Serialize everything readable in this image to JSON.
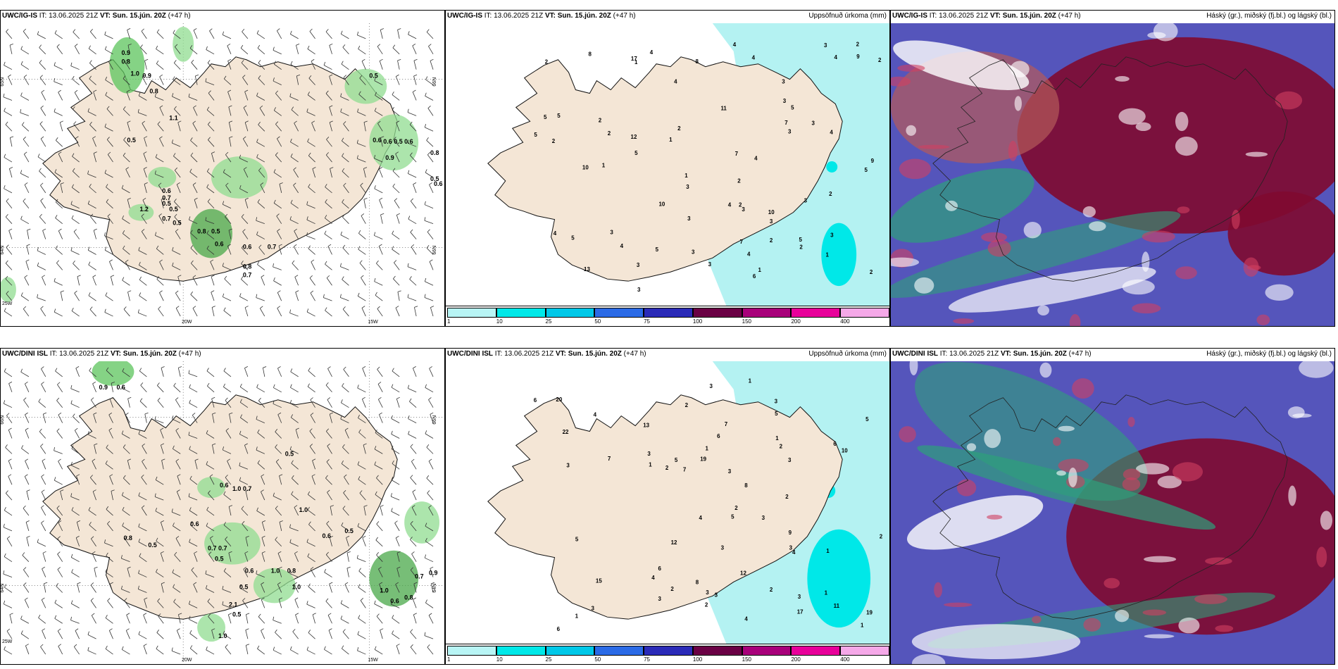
{
  "panels": [
    {
      "id": "p1",
      "model": "UWC/IG-IS",
      "it_label": "IT:",
      "it": "13.06.2025 21Z",
      "vt_label": "VT:",
      "vt": "Sun. 15.jún. 20Z",
      "lead": "(+47 h)",
      "right": "",
      "values": [
        "0.9",
        "0.8",
        "1.0",
        "0.9",
        "0.8",
        "1.1",
        "0.5",
        "0.5",
        "0.6",
        "0.6",
        "0.5",
        "0.6",
        "0.9",
        "0.8",
        "0.5",
        "0.6",
        "0.6",
        "0.7",
        "0.5",
        "0.5",
        "1.2",
        "0.7",
        "0.5",
        "0.8",
        "0.5",
        "0.6",
        "0.6",
        "0.7",
        "0.8",
        "0.7"
      ],
      "grid": [
        "20W",
        "15W",
        "25W",
        "65N",
        "64N",
        "66N",
        "66N"
      ]
    },
    {
      "id": "p2",
      "model": "UWC/IG-IS",
      "it_label": "IT:",
      "it": "13.06.2025 21Z",
      "vt_label": "VT:",
      "vt": "Sun. 15.jún. 20Z",
      "lead": "(+47 h)",
      "right": "Uppsöfnuð úrkoma (mm)",
      "values": [
        "1",
        "1",
        "3",
        "2",
        "3",
        "4",
        "5",
        "5",
        "3",
        "4",
        "5",
        "5",
        "1",
        "2",
        "3",
        "3",
        "2",
        "4",
        "3",
        "4",
        "5",
        "3",
        "3",
        "2",
        "4",
        "5",
        "1",
        "2",
        "3",
        "4",
        "3",
        "2",
        "3",
        "5",
        "4",
        "3",
        "4",
        "5",
        "9",
        "10",
        "8",
        "7",
        "2",
        "3",
        "4",
        "2",
        "4",
        "3",
        "2",
        "9",
        "10",
        "11",
        "12",
        "3",
        "2",
        "2",
        "1",
        "2",
        "3",
        "4",
        "5",
        "6",
        "7",
        "10",
        "17",
        "13",
        "8",
        "7",
        "2",
        "1"
      ]
    },
    {
      "id": "p3",
      "model": "UWC/IG-IS",
      "it_label": "IT:",
      "it": "13.06.2025 21Z",
      "vt_label": "VT:",
      "vt": "Sun. 15.jún. 20Z",
      "lead": "(+47 h)",
      "right": "Háský (gr.), miðský (fj.bl.) og lágský (bl.)"
    },
    {
      "id": "p4",
      "model": "UWC/DINI ISL",
      "it_label": "IT:",
      "it": "13.06.2025 21Z",
      "vt_label": "VT:",
      "vt": "Sun. 15.jún. 20Z",
      "lead": "(+47 h)",
      "right": "",
      "values": [
        "0.9",
        "0.6",
        "0.5",
        "0.6",
        "1.0",
        "0.7",
        "1.0",
        "0.6",
        "0.8",
        "0.5",
        "0.6",
        "0.5",
        "0.7",
        "0.7",
        "0.5",
        "0.6",
        "1.0",
        "0.8",
        "0.5",
        "2.1",
        "0.5",
        "1.0",
        "0.7",
        "1.0",
        "0.6",
        "0.8",
        "0.9",
        "1.0"
      ],
      "grid": [
        "20W",
        "15W",
        "25W",
        "66N",
        "64N",
        "66N",
        "64N"
      ]
    },
    {
      "id": "p5",
      "model": "UWC/DINI ISL",
      "it_label": "IT:",
      "it": "13.06.2025 21Z",
      "vt_label": "VT:",
      "vt": "Sun. 15.jún. 20Z",
      "lead": "(+47 h)",
      "right": "Uppsöfnuð úrkoma (mm)",
      "values": [
        "1",
        "1",
        "2",
        "3",
        "2",
        "1",
        "1",
        "3",
        "3",
        "4",
        "1",
        "1",
        "2",
        "3",
        "2",
        "3",
        "3",
        "5",
        "4",
        "5",
        "6",
        "3",
        "2",
        "3",
        "4",
        "5",
        "5",
        "6",
        "10",
        "12",
        "11",
        "12",
        "7",
        "6",
        "5",
        "4",
        "3",
        "3",
        "3",
        "8",
        "7",
        "6",
        "13",
        "3",
        "2",
        "2",
        "1",
        "3",
        "2",
        "19",
        "22",
        "19",
        "20",
        "17",
        "15",
        "4",
        "6",
        "7",
        "8",
        "9",
        "3",
        "1",
        "2"
      ]
    },
    {
      "id": "p6",
      "model": "UWC/DINI ISL",
      "it_label": "IT:",
      "it": "13.06.2025 21Z",
      "vt_label": "VT:",
      "vt": "Sun. 15.jún. 20Z",
      "lead": "(+47 h)",
      "right": "Háský (gr.), miðský (fj.bl.) og lágský (bl.)"
    }
  ],
  "colorbar": {
    "ticks": [
      "1",
      "10",
      "25",
      "50",
      "75",
      "100",
      "150",
      "200",
      "400"
    ],
    "colors": [
      "#b8f5f5",
      "#00e8e8",
      "#00c8e8",
      "#2a6ae6",
      "#2a2ab8",
      "#6a0044",
      "#a8007a",
      "#e8009a",
      "#f5a8e8"
    ]
  },
  "colors": {
    "land": "#f4e6d6",
    "precip_light": "#b4f2f2",
    "green": "#7ed47e",
    "cloud_dark": "#800a30",
    "cloud_blue": "#5555bb",
    "cloud_green": "#2ea07a"
  }
}
